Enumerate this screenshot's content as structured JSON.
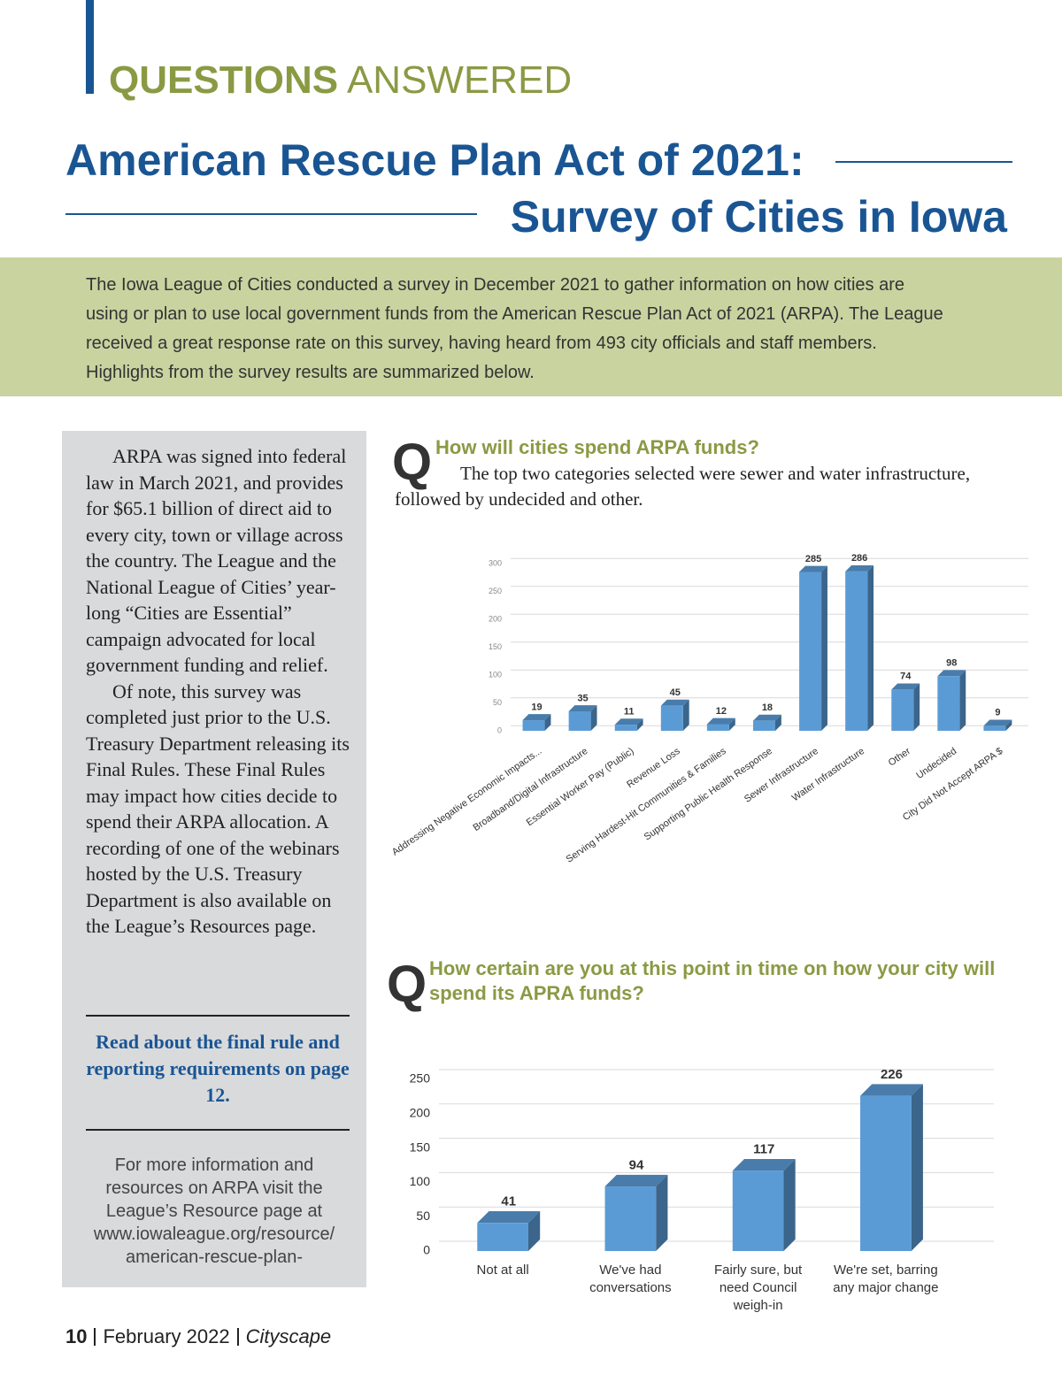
{
  "header": {
    "section_bold": "QUESTIONS",
    "section_light": "ANSWERED",
    "title_line1": "American Rescue Plan Act of 2021:",
    "title_line2": "Survey of Cities in Iowa"
  },
  "intro": "The Iowa League of Cities conducted a survey in December 2021 to gather information on how cities are using or plan to use local government funds from the American Rescue Plan Act of 2021 (ARPA). The League received a great response rate on this survey, having heard from 493 city officials and staff members. Highlights from the survey results are summarized below.",
  "sidebar": {
    "paragraphs": [
      "ARPA was signed into federal law in March 2021, and provides for $65.1 billion of direct aid to every city, town or village across the country. The League and the National League of Cities’ year-long “Cities are Essential” campaign advocated for local government funding and relief.",
      "Of note, this survey was completed just prior to the U.S. Treasury Department releasing its Final Rules. These Final Rules may impact how cities decide to spend their ARPA allocation. A recording of one of the webinars hosted by the U.S. Treasury Department is also available on the League’s Resources page."
    ],
    "callout": "Read about the final rule and reporting requirements on page 12.",
    "info": "For more information and resources on ARPA visit the League’s Resource page at www.iowaleague.org/resource/ american-rescue-plan-"
  },
  "questions": [
    {
      "letter": "Q",
      "question": "How will cities spend ARPA funds?",
      "answer": "The top two categories selected were sewer and water infrastructure, followed by undecided and other."
    },
    {
      "letter": "Q",
      "question": "How certain are you at this point in time on how your city will spend its APRA funds?"
    }
  ],
  "chart_data": [
    {
      "type": "bar",
      "categories": [
        "Addressing Negative Economic Impacts...",
        "Broadband/Digital Infrastructure",
        "Essential Worker Pay (Public)",
        "Revenue Loss",
        "Serving Hardest-Hit Communities & Families",
        "Supporting Public Health Response",
        "Sewer Infrastructure",
        "Water Infrastructure",
        "Other",
        "Undecided",
        "City Did Not Accept ARPA $"
      ],
      "values": [
        19,
        35,
        11,
        45,
        12,
        18,
        285,
        286,
        74,
        98,
        9
      ],
      "color": "#5b9bd5",
      "ylim": [
        0,
        300
      ],
      "yticks": [
        0,
        50,
        100,
        150,
        200,
        250,
        300
      ],
      "grid": true,
      "three_d": true
    },
    {
      "type": "bar",
      "categories": [
        "Not at all",
        "We've had conversations",
        "Fairly sure, but need Council weigh-in",
        "We're set, barring any major change"
      ],
      "values": [
        41,
        94,
        117,
        226
      ],
      "color": "#5b9bd5",
      "ylim": [
        0,
        250
      ],
      "yticks": [
        0,
        50,
        100,
        150,
        200,
        250
      ],
      "grid": true,
      "three_d": true
    }
  ],
  "footer": {
    "page": "10",
    "issue": "February 2022",
    "publication": "Cityscape"
  }
}
